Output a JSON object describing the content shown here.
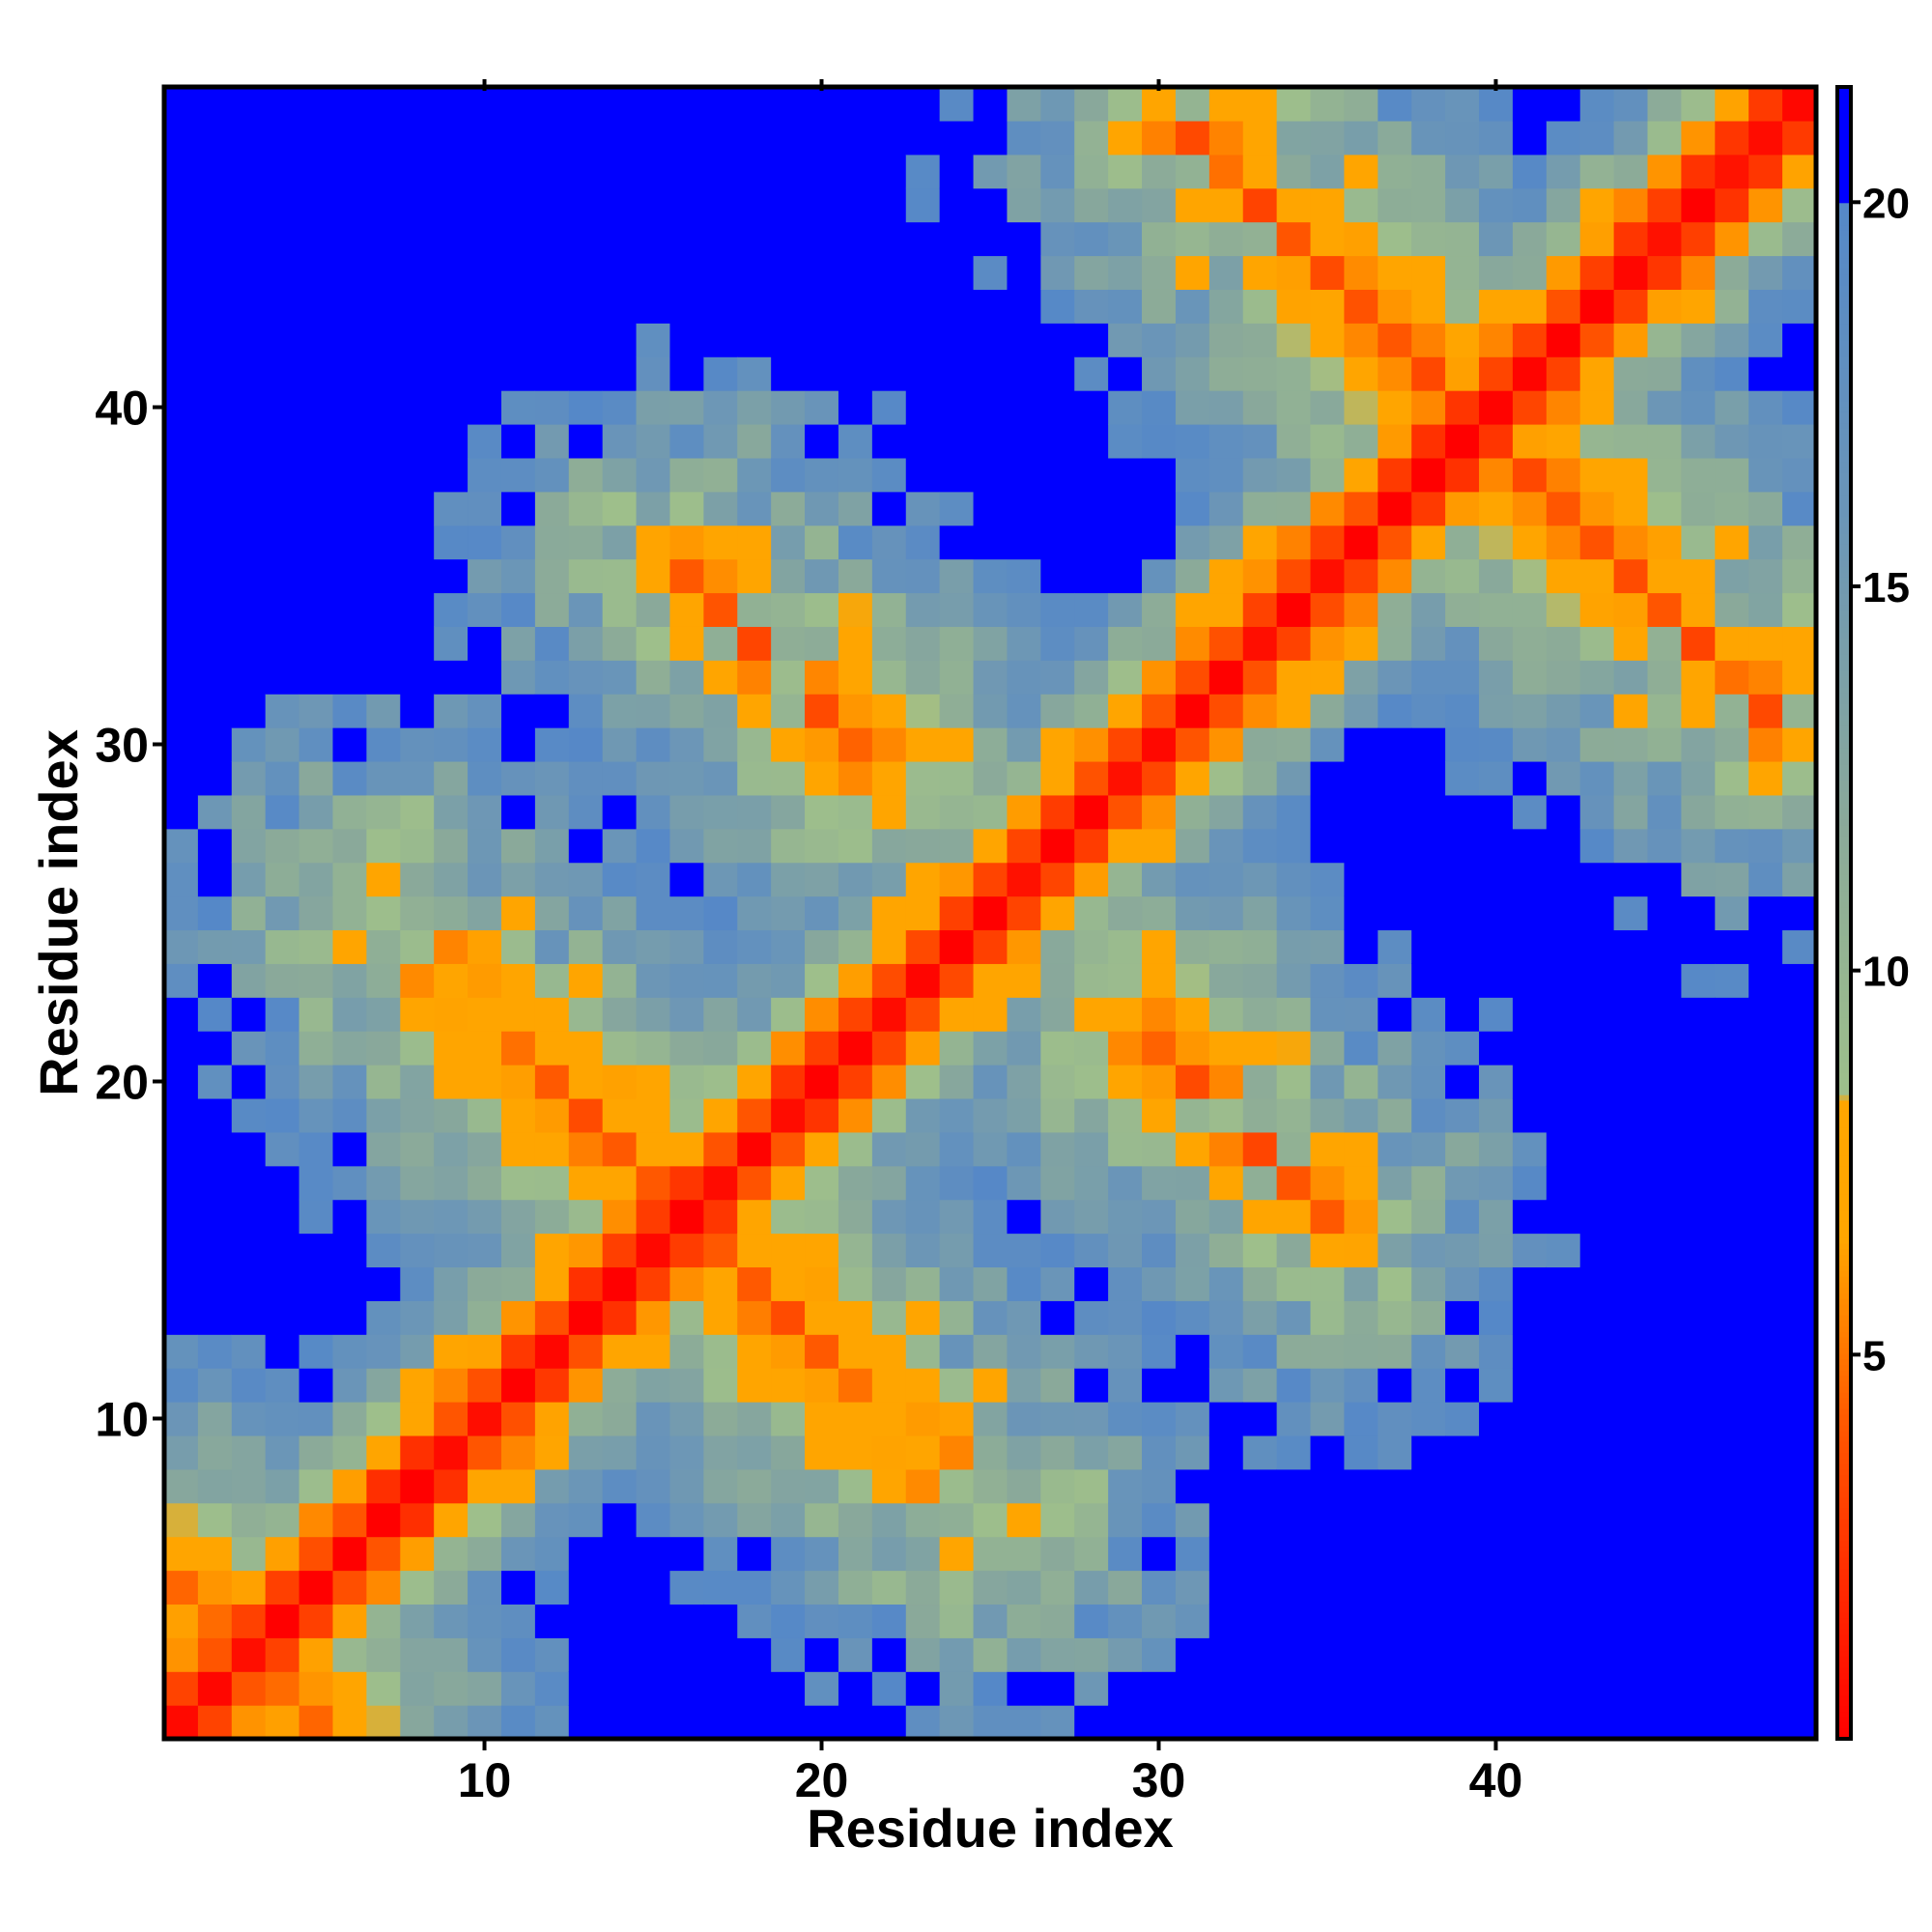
{
  "chart_data": {
    "type": "heatmap",
    "title": "",
    "xlabel": "Residue index",
    "ylabel": "Residue index",
    "n_residues": 49,
    "xlim": [
      0.5,
      49.5
    ],
    "ylim": [
      0.5,
      49.5
    ],
    "x_ticks": [
      10,
      20,
      30,
      40
    ],
    "y_ticks": [
      10,
      20,
      30,
      40
    ],
    "colorbar": {
      "range": [
        0,
        21.5
      ],
      "ticks": [
        5,
        10,
        15,
        20
      ],
      "stops": [
        {
          "value": 0,
          "color": "#ff0000"
        },
        {
          "value": 4,
          "color": "#ff5500"
        },
        {
          "value": 6.5,
          "color": "#ffa500"
        },
        {
          "value": 8.3,
          "color": "#ffa500"
        },
        {
          "value": 8.4,
          "color": "#9ebf8b"
        },
        {
          "value": 12,
          "color": "#8aa99a"
        },
        {
          "value": 16,
          "color": "#6a95b8"
        },
        {
          "value": 20,
          "color": "#5588c8"
        },
        {
          "value": 20.01,
          "color": "#0000ff"
        },
        {
          "value": 21.5,
          "color": "#0000ff"
        }
      ]
    },
    "values": "symmetric 49x49 inter-residue distance map: diagonal ~0, beta-hairpin anti-diagonal contacts near (1-5,1-5), (7-25,17-25), (16-21,31-35), (31-48,35-48); long-range separations saturate at ~21"
  },
  "colors": {
    "near": "#ff0000",
    "contact": "#ffa500",
    "mid": "#9ebf8b",
    "far": "#5a8ac0",
    "saturated": "#0000ff"
  }
}
